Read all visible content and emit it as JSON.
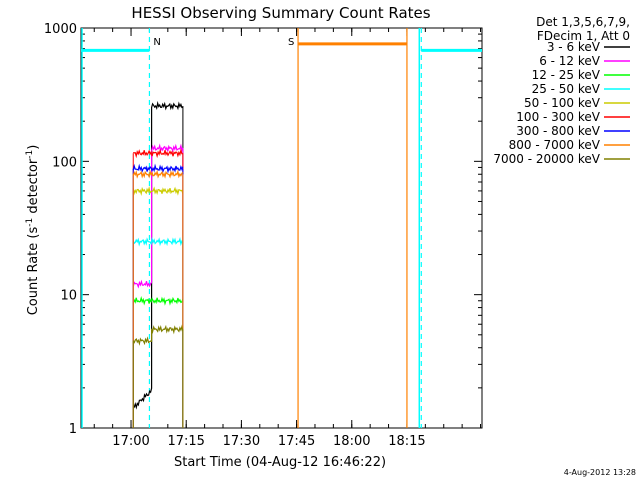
{
  "chart_data": {
    "type": "line",
    "title": "HESSI Observing Summary Count Rates",
    "xlabel": "Start Time (04-Aug-12 16:46:22)",
    "ylabel_main": "Count Rate (s",
    "ylabel_sup1": "-1",
    "ylabel_mid": " detector",
    "ylabel_sup2": "-1",
    "ylabel_end": ")",
    "yscale": "log",
    "ylim": [
      1,
      1000
    ],
    "xlim_minutes_after_start": [
      0,
      109
    ],
    "x_ticks": [
      "17:00",
      "17:15",
      "17:30",
      "17:45",
      "18:00",
      "18:15"
    ],
    "x_tick_minutes": [
      13.6,
      28.6,
      43.6,
      58.6,
      73.6,
      88.6
    ],
    "y_ticks": [
      "1",
      "10",
      "100",
      "1000"
    ],
    "y_tick_values": [
      1,
      10,
      100,
      1000
    ],
    "legend_header": [
      "Det 1,3,5,6,7,9,",
      "FDecim 1, Att 0"
    ],
    "series": [
      {
        "name": "3 - 6 keV",
        "color": "#000000",
        "segments": [
          [
            14.2,
            1.4,
            19.2,
            1.9
          ],
          [
            19.2,
            260,
            27.7,
            260
          ]
        ]
      },
      {
        "name": "6 - 12 keV",
        "color": "#ff00ff",
        "segments": [
          [
            14.2,
            12,
            19.2,
            12
          ],
          [
            19.2,
            125,
            27.7,
            125
          ]
        ]
      },
      {
        "name": "12 - 25 keV",
        "color": "#00ff00",
        "segments": [
          [
            14.2,
            9,
            27.7,
            9
          ]
        ]
      },
      {
        "name": "25 - 50 keV",
        "color": "#00ffff",
        "segments": [
          [
            14.2,
            25,
            27.7,
            25
          ]
        ]
      },
      {
        "name": "50 - 100 keV",
        "color": "#cccc00",
        "segments": [
          [
            14.2,
            60,
            27.7,
            60
          ]
        ]
      },
      {
        "name": "100 - 300 keV",
        "color": "#ff0000",
        "segments": [
          [
            14.2,
            115,
            27.7,
            115
          ]
        ]
      },
      {
        "name": "300 - 800 keV",
        "color": "#0000ff",
        "segments": [
          [
            14.2,
            88,
            27.7,
            88
          ]
        ]
      },
      {
        "name": "800 - 7000 keV",
        "color": "#ff8000",
        "segments": [
          [
            14.2,
            80,
            27.7,
            80
          ]
        ]
      },
      {
        "name": "7000 - 20000 keV",
        "color": "#808000",
        "segments": [
          [
            14.2,
            4.5,
            19.2,
            4.5
          ],
          [
            19.2,
            5.5,
            27.7,
            5.5
          ]
        ]
      }
    ],
    "markers": [
      {
        "label": "N",
        "color": "#00ffff",
        "kind": "night-bar",
        "from": 0,
        "to": 18.6,
        "level": 680
      },
      {
        "label": "",
        "color": "#00ffff",
        "kind": "night-bar",
        "from": 92.5,
        "to": 109,
        "level": 680
      },
      {
        "label": "S",
        "color": "#ff8000",
        "kind": "saa-bar",
        "from": 59,
        "to": 88.6,
        "level": 760
      }
    ],
    "footer_date": "4-Aug-2012 13:28"
  }
}
